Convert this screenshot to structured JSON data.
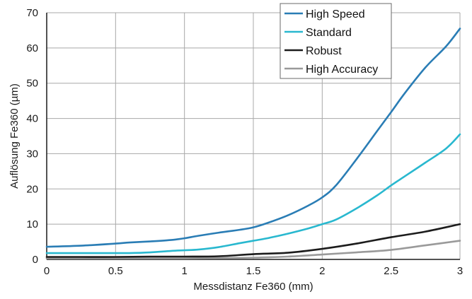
{
  "chart_data": {
    "type": "line",
    "title": "",
    "xlabel": "Messdistanz Fe360 (mm)",
    "ylabel": "Auflösung Fe360 (µm)",
    "xlim": [
      0,
      3
    ],
    "ylim": [
      0,
      70
    ],
    "xticks": [
      0,
      0.5,
      1,
      1.5,
      2,
      2.5,
      3
    ],
    "yticks": [
      0,
      10,
      20,
      30,
      40,
      50,
      60,
      70
    ],
    "xtick_labels": [
      "0",
      "0.5",
      "1",
      "1.5",
      "2",
      "2.5",
      "3"
    ],
    "ytick_labels": [
      "0",
      "10",
      "20",
      "30",
      "40",
      "50",
      "60",
      "70"
    ],
    "grid": true,
    "legend_position": "top-right",
    "series": [
      {
        "name": "High Speed",
        "color": "#2a7db5",
        "x": [
          0,
          0.25,
          0.5,
          0.6,
          0.75,
          0.9,
          1.0,
          1.1,
          1.25,
          1.4,
          1.5,
          1.6,
          1.75,
          1.9,
          2.0,
          2.1,
          2.25,
          2.4,
          2.5,
          2.6,
          2.75,
          2.9,
          3.0
        ],
        "y": [
          3.6,
          3.9,
          4.5,
          4.8,
          5.1,
          5.5,
          6.0,
          6.7,
          7.6,
          8.4,
          9.1,
          10.3,
          12.5,
          15.3,
          17.6,
          21.0,
          28.5,
          36.5,
          41.8,
          47.2,
          54.5,
          60.5,
          65.5
        ]
      },
      {
        "name": "Standard",
        "color": "#29b8cf",
        "x": [
          0,
          0.25,
          0.5,
          0.6,
          0.75,
          0.9,
          1.0,
          1.1,
          1.25,
          1.4,
          1.5,
          1.6,
          1.75,
          1.9,
          2.0,
          2.1,
          2.25,
          2.4,
          2.5,
          2.6,
          2.75,
          2.9,
          3.0
        ],
        "y": [
          1.8,
          1.8,
          1.8,
          1.8,
          2.0,
          2.4,
          2.6,
          2.8,
          3.5,
          4.6,
          5.3,
          6.0,
          7.3,
          8.8,
          10.0,
          11.3,
          14.5,
          18.2,
          21.0,
          23.6,
          27.5,
          31.5,
          35.5
        ]
      },
      {
        "name": "Robust",
        "color": "#1c1c1c",
        "x": [
          0,
          0.25,
          0.5,
          0.75,
          1.0,
          1.25,
          1.5,
          1.75,
          2.0,
          2.25,
          2.5,
          2.75,
          3.0
        ],
        "y": [
          0.7,
          0.7,
          0.7,
          0.8,
          0.8,
          0.9,
          1.5,
          1.9,
          3.0,
          4.5,
          6.3,
          7.9,
          10.0
        ]
      },
      {
        "name": "High Accuracy",
        "color": "#9a9a9a",
        "x": [
          0,
          0.25,
          0.5,
          0.75,
          1.0,
          1.25,
          1.5,
          1.75,
          2.0,
          2.25,
          2.5,
          2.75,
          3.0
        ],
        "y": [
          0.3,
          0.3,
          0.3,
          0.3,
          0.3,
          0.4,
          0.5,
          0.8,
          1.4,
          2.0,
          2.7,
          4.0,
          5.3
        ]
      }
    ]
  }
}
